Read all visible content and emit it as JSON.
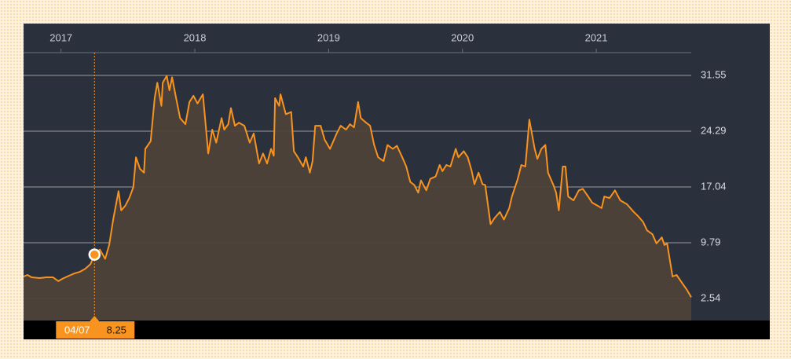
{
  "chart_data": {
    "type": "area",
    "tooltip": {
      "label": "04/07",
      "value": 8.25
    },
    "series": [
      {
        "color": "#f7931e",
        "x": [
          2016.72,
          2016.75,
          2016.78,
          2016.84,
          2016.89,
          2016.94,
          2016.98,
          2017.01,
          2017.06,
          2017.1,
          2017.14,
          2017.18,
          2017.22,
          2017.25,
          2017.29,
          2017.33,
          2017.36,
          2017.39,
          2017.43,
          2017.45,
          2017.48,
          2017.51,
          2017.54,
          2017.56,
          2017.59,
          2017.62,
          2017.63,
          2017.67,
          2017.7,
          2017.72,
          2017.75,
          2017.76,
          2017.79,
          2017.81,
          2017.83,
          2017.86,
          2017.89,
          2017.93,
          2017.96,
          2017.99,
          2018.02,
          2018.06,
          2018.1,
          2018.13,
          2018.16,
          2018.2,
          2018.22,
          2018.25,
          2018.27,
          2018.3,
          2018.33,
          2018.37,
          2018.41,
          2018.44,
          2018.48,
          2018.51,
          2018.54,
          2018.57,
          2018.59,
          2018.6,
          2018.63,
          2018.64,
          2018.68,
          2018.72,
          2018.74,
          2018.77,
          2018.81,
          2018.83,
          2018.86,
          2018.88,
          2018.9,
          2018.94,
          2018.97,
          2019.01,
          2019.06,
          2019.09,
          2019.13,
          2019.16,
          2019.19,
          2019.22,
          2019.24,
          2019.28,
          2019.31,
          2019.34,
          2019.37,
          2019.41,
          2019.44,
          2019.48,
          2019.51,
          2019.55,
          2019.58,
          2019.61,
          2019.64,
          2019.67,
          2019.69,
          2019.73,
          2019.76,
          2019.8,
          2019.83,
          2019.85,
          2019.88,
          2019.91,
          2019.95,
          2019.97,
          2020.01,
          2020.04,
          2020.07,
          2020.09,
          2020.12,
          2020.15,
          2020.17,
          2020.21,
          2020.24,
          2020.28,
          2020.31,
          2020.35,
          2020.37,
          2020.41,
          2020.44,
          2020.47,
          2020.5,
          2020.54,
          2020.56,
          2020.59,
          2020.62,
          2020.64,
          2020.68,
          2020.7,
          2020.72,
          2020.75,
          2020.77,
          2020.79,
          2020.83,
          2020.87,
          2020.9,
          2020.94,
          2020.97,
          2021.01,
          2021.04,
          2021.06,
          2021.1,
          2021.14,
          2021.18,
          2021.23,
          2021.28,
          2021.31,
          2021.35,
          2021.38,
          2021.42,
          2021.45,
          2021.49,
          2021.51,
          2021.53,
          2021.57,
          2021.6,
          2021.64,
          2021.68,
          2021.71
        ],
        "values": [
          5.4,
          5.6,
          5.3,
          5.2,
          5.3,
          5.3,
          4.8,
          5.1,
          5.5,
          5.8,
          6.0,
          6.4,
          7.0,
          8.25,
          8.9,
          7.7,
          9.5,
          12.8,
          16.5,
          14.0,
          14.6,
          15.6,
          17.0,
          20.9,
          19.4,
          18.9,
          22.0,
          23.0,
          28.6,
          30.6,
          27.6,
          30.6,
          31.5,
          29.6,
          31.3,
          28.6,
          26.0,
          25.2,
          28.1,
          28.9,
          27.9,
          29.1,
          21.4,
          24.5,
          22.8,
          26.0,
          24.5,
          25.2,
          27.3,
          25.0,
          25.4,
          25.0,
          22.8,
          24.0,
          20.1,
          21.4,
          20.1,
          22.0,
          21.1,
          28.6,
          27.6,
          29.1,
          26.5,
          26.8,
          21.7,
          20.9,
          19.7,
          20.9,
          18.9,
          20.4,
          25.0,
          25.0,
          23.2,
          22.0,
          24.0,
          25.0,
          24.5,
          25.2,
          24.8,
          28.1,
          26.0,
          25.4,
          25.0,
          22.5,
          20.9,
          20.4,
          22.5,
          22.0,
          22.4,
          20.9,
          19.7,
          17.7,
          17.3,
          16.3,
          17.9,
          16.6,
          18.1,
          18.4,
          19.9,
          19.1,
          19.9,
          19.7,
          22.0,
          20.9,
          21.7,
          20.9,
          19.1,
          17.4,
          18.9,
          17.4,
          17.3,
          12.2,
          13.0,
          13.8,
          12.8,
          14.3,
          15.8,
          17.9,
          19.9,
          19.7,
          25.8,
          22.0,
          20.7,
          22.0,
          22.5,
          18.9,
          17.3,
          16.3,
          14.0,
          19.7,
          19.7,
          15.8,
          15.3,
          16.6,
          16.8,
          15.8,
          15.0,
          14.6,
          14.3,
          15.8,
          15.6,
          16.6,
          15.3,
          14.8,
          13.8,
          13.3,
          12.5,
          11.4,
          10.9,
          9.7,
          10.5,
          9.5,
          9.7,
          5.4,
          5.6,
          4.6,
          3.6,
          2.7
        ]
      }
    ],
    "xlim": [
      2016.72,
      2021.71
    ],
    "xticks": [
      2017,
      2018,
      2019,
      2020,
      2021
    ],
    "ylim": [
      -0.32,
      34.51
    ],
    "yticks": [
      2.54,
      9.79,
      17.04,
      24.29,
      31.55
    ],
    "grid": true
  }
}
